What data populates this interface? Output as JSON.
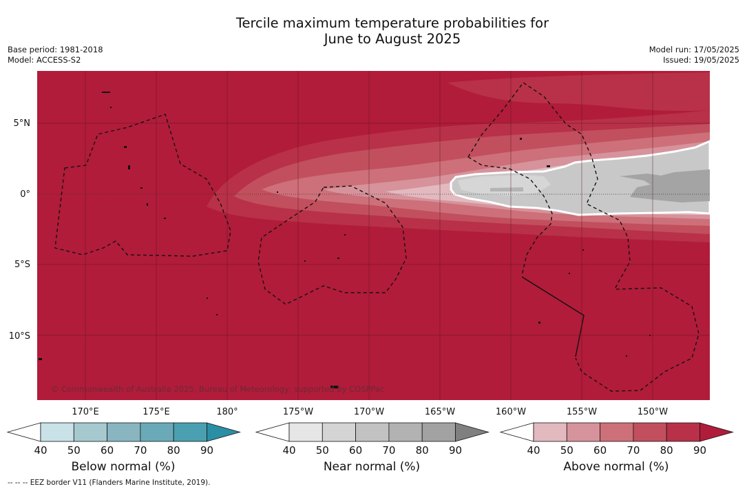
{
  "title_line1": "Tercile maximum temperature probabilities for",
  "title_line2": "June to August 2025",
  "base_period": "Base period: 1981-2018",
  "model": "Model: ACCESS-S2",
  "model_run": "Model run: 17/05/2025",
  "issued": "Issued: 19/05/2025",
  "lat_labels": [
    "5°N",
    "0°",
    "5°S",
    "10°S"
  ],
  "lon_labels": [
    "170°E",
    "175°E",
    "180°",
    "175°W",
    "170°W",
    "165°W",
    "160°W",
    "155°W",
    "150°W"
  ],
  "copyright": "© Commonwealth of Australia 2025, Bureau of Meteorology, supported by COSPPac",
  "colorbars": [
    {
      "title": "Below normal (%)",
      "ticks": [
        "40",
        "50",
        "60",
        "70",
        "80",
        "90"
      ],
      "colors": [
        "#ffffff",
        "#c8e2e8",
        "#a6c9cf",
        "#88b5c0",
        "#6aaab8",
        "#4aa0b0",
        "#2a8fa5"
      ]
    },
    {
      "title": "Near normal (%)",
      "ticks": [
        "40",
        "50",
        "60",
        "70",
        "80",
        "90"
      ],
      "colors": [
        "#ffffff",
        "#e6e6e6",
        "#d4d4d4",
        "#c2c2c2",
        "#b2b2b2",
        "#a2a2a2",
        "#808080"
      ]
    },
    {
      "title": "Above normal (%)",
      "ticks": [
        "40",
        "50",
        "60",
        "70",
        "80",
        "90"
      ],
      "colors": [
        "#ffffff",
        "#e2b9bf",
        "#d6939b",
        "#cd7079",
        "#c24f5d",
        "#b83148",
        "#b11c3a"
      ]
    }
  ],
  "footer": "--  --  -- EEZ border V11 (Flanders Marine Institute, 2019)."
}
